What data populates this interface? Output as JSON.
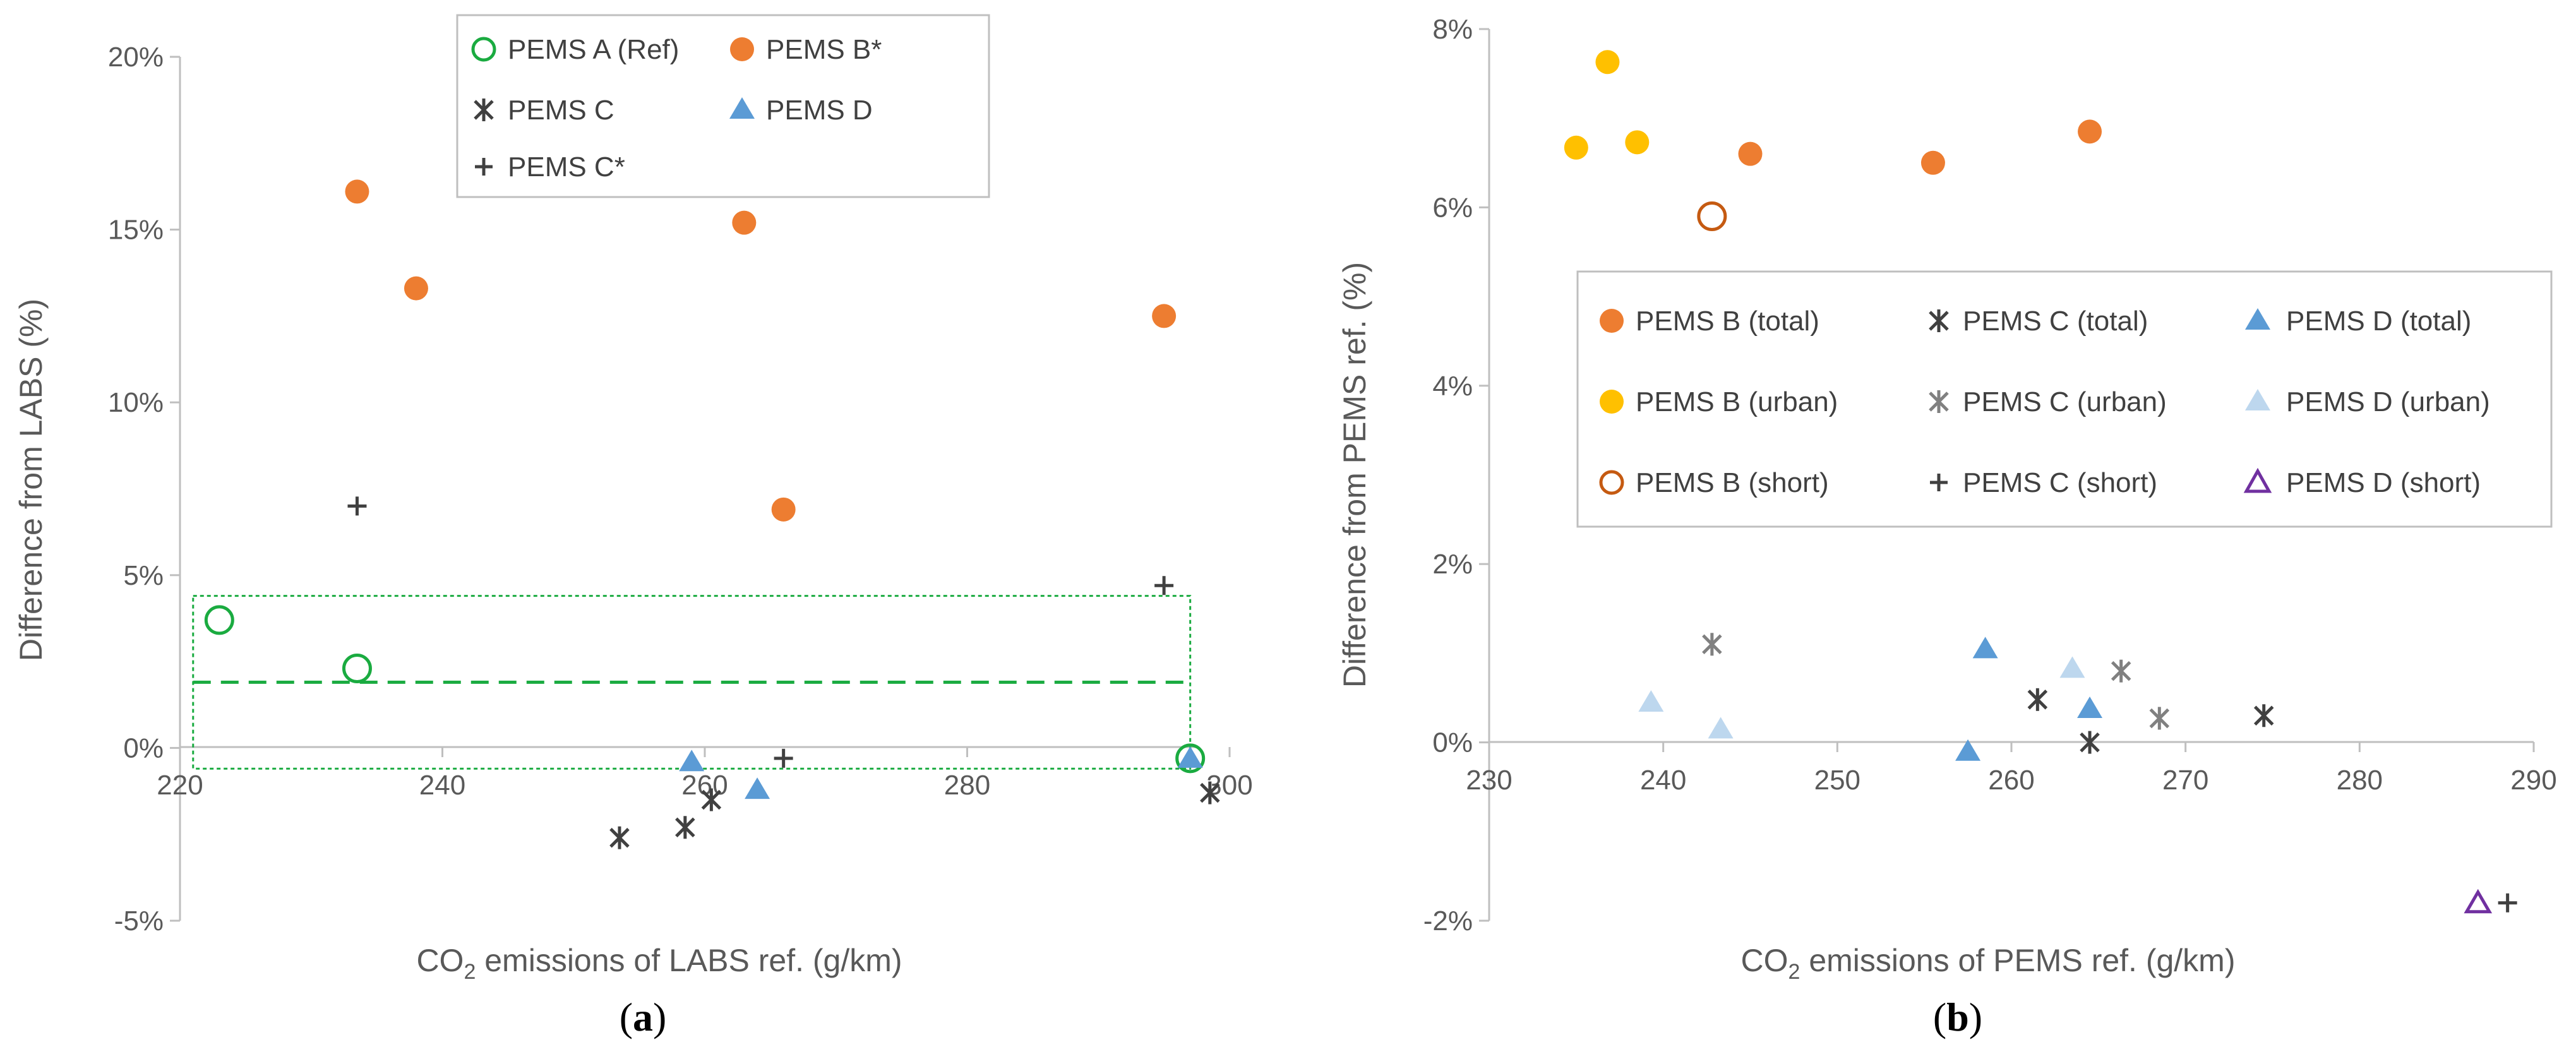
{
  "colors": {
    "green": "#1aab40",
    "orange": "#ed7d31",
    "gold": "#ffc000",
    "blue": "#5b9bd5",
    "lightblue": "#bdd7ee",
    "purple": "#7030a0",
    "dark": "#404040",
    "gray": "#808080",
    "brown": "#c55a11",
    "axis": "#bfbfbf"
  },
  "chart_data": [
    {
      "type": "scatter",
      "panel_label": "a",
      "xlabel_pre": "CO",
      "xlabel_sub": "2",
      "xlabel_post": " emissions of LABS ref. (g/km)",
      "ylabel": "Difference from LABS (%)",
      "xlim": [
        220,
        300
      ],
      "ylim": [
        -5,
        20
      ],
      "xticks": [
        220,
        240,
        260,
        280,
        300
      ],
      "xtick_labels": [
        "220",
        "240",
        "260",
        "280",
        "300"
      ],
      "yticks": [
        -5,
        0,
        5,
        10,
        15,
        20
      ],
      "ytick_labels": [
        "-5%",
        "0%",
        "5%",
        "10%",
        "15%",
        "20%"
      ],
      "reference_line": {
        "y": 1.9,
        "x_range": [
          221,
          297
        ]
      },
      "reference_box": {
        "x_range": [
          221,
          297
        ],
        "y_range": [
          -0.6,
          4.4
        ]
      },
      "legend_position": "top-center",
      "series": [
        {
          "name": "PEMS A (Ref)",
          "marker": "circle-open",
          "color": "#1aab40",
          "points": [
            [
              223,
              3.7
            ],
            [
              233.5,
              2.3
            ],
            [
              297,
              -0.3
            ]
          ]
        },
        {
          "name": "PEMS B*",
          "marker": "circle",
          "color": "#ed7d31",
          "points": [
            [
              233.5,
              16.1
            ],
            [
              238,
              13.3
            ],
            [
              263,
              15.2
            ],
            [
              266,
              6.9
            ],
            [
              295,
              12.5
            ]
          ]
        },
        {
          "name": "PEMS C",
          "marker": "asterisk",
          "color": "#404040",
          "points": [
            [
              253.5,
              -2.6
            ],
            [
              258.5,
              -2.3
            ],
            [
              260.5,
              -1.5
            ],
            [
              298.5,
              -1.3
            ]
          ]
        },
        {
          "name": "PEMS D",
          "marker": "triangle",
          "color": "#5b9bd5",
          "points": [
            [
              259,
              -0.4
            ],
            [
              264,
              -1.2
            ],
            [
              297,
              -0.3
            ]
          ]
        },
        {
          "name": "PEMS C*",
          "marker": "plus",
          "color": "#404040",
          "points": [
            [
              233.5,
              7.0
            ],
            [
              266,
              -0.3
            ],
            [
              295,
              4.7
            ]
          ]
        }
      ]
    },
    {
      "type": "scatter",
      "panel_label": "b",
      "xlabel_pre": "CO",
      "xlabel_sub": "2",
      "xlabel_post": " emissions of PEMS ref. (g/km)",
      "ylabel": "Difference from PEMS ref. (%)",
      "xlim": [
        230,
        290
      ],
      "ylim": [
        -2,
        8
      ],
      "xticks": [
        230,
        240,
        250,
        260,
        270,
        280,
        290
      ],
      "xtick_labels": [
        "230",
        "240",
        "250",
        "260",
        "270",
        "280",
        "290"
      ],
      "yticks": [
        -2,
        0,
        2,
        4,
        6,
        8
      ],
      "ytick_labels": [
        "-2%",
        "0%",
        "2%",
        "4%",
        "6%",
        "8%"
      ],
      "legend_position": "center-right",
      "series": [
        {
          "name": "PEMS B (total)",
          "marker": "circle",
          "color": "#ed7d31",
          "points": [
            [
              245,
              6.6
            ],
            [
              255.5,
              6.5
            ],
            [
              264.5,
              6.85
            ]
          ]
        },
        {
          "name": "PEMS C (total)",
          "marker": "asterisk",
          "color": "#404040",
          "points": [
            [
              261.5,
              0.48
            ],
            [
              264.5,
              0.0
            ],
            [
              274.5,
              0.3
            ]
          ]
        },
        {
          "name": "PEMS D (total)",
          "marker": "triangle",
          "color": "#5b9bd5",
          "points": [
            [
              257.5,
              -0.1
            ],
            [
              258.5,
              1.05
            ],
            [
              264.5,
              0.38
            ]
          ]
        },
        {
          "name": "PEMS B (urban)",
          "marker": "circle",
          "color": "#ffc000",
          "points": [
            [
              235,
              6.67
            ],
            [
              236.8,
              7.63
            ],
            [
              238.5,
              6.73
            ]
          ]
        },
        {
          "name": "PEMS C (urban)",
          "marker": "asterisk",
          "color": "#808080",
          "points": [
            [
              242.8,
              1.1
            ],
            [
              266.3,
              0.8
            ],
            [
              268.5,
              0.27
            ]
          ]
        },
        {
          "name": "PEMS D (urban)",
          "marker": "triangle",
          "color": "#bdd7ee",
          "points": [
            [
              239.3,
              0.45
            ],
            [
              243.3,
              0.15
            ],
            [
              263.5,
              0.83
            ]
          ]
        },
        {
          "name": "PEMS B (short)",
          "marker": "circle-open",
          "color": "#c55a11",
          "points": [
            [
              242.8,
              5.9
            ]
          ]
        },
        {
          "name": "PEMS C (short)",
          "marker": "plus",
          "color": "#404040",
          "points": [
            [
              288.5,
              -1.8
            ]
          ]
        },
        {
          "name": "PEMS D (short)",
          "marker": "triangle-open",
          "color": "#7030a0",
          "points": [
            [
              286.8,
              -1.8
            ]
          ]
        }
      ]
    }
  ]
}
